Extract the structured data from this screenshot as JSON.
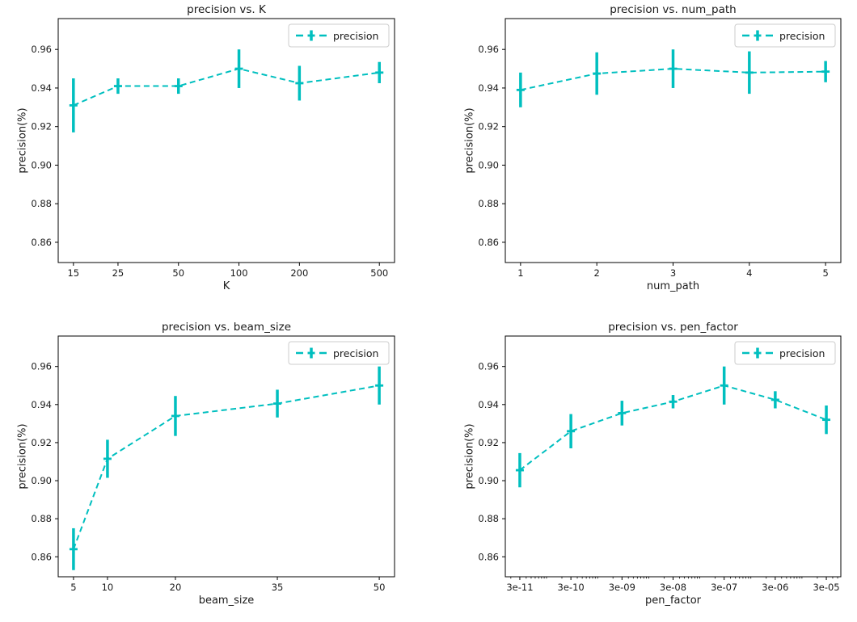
{
  "figure": {
    "background": "#ffffff",
    "accent_color": "#00bfbf",
    "text_color": "#1a1a1a",
    "spine_color": "#000000",
    "legend_border_color": "#cccccc"
  },
  "chart_data": [
    {
      "type": "line",
      "subtype": "errorbar",
      "title": "precision vs. K",
      "xlabel": "K",
      "ylabel": "precision(%)",
      "legend": {
        "label": "precision",
        "position": "upper right"
      },
      "line_style": "dashed",
      "color": "#00bfbf",
      "xscale": "log",
      "grid": false,
      "minor_xticks": false,
      "x": [
        15,
        25,
        50,
        100,
        200,
        500
      ],
      "xtick_labels": [
        "15",
        "25",
        "50",
        "100",
        "200",
        "500"
      ],
      "y": [
        0.931,
        0.941,
        0.941,
        0.95,
        0.9425,
        0.948
      ],
      "yerr": [
        0.014,
        0.004,
        0.004,
        0.01,
        0.009,
        0.0055
      ],
      "yticks": [
        0.86,
        0.88,
        0.9,
        0.92,
        0.94,
        0.96
      ],
      "ytick_labels": [
        "0.86",
        "0.88",
        "0.90",
        "0.92",
        "0.94",
        "0.96"
      ],
      "xlim": [
        12.6,
        595
      ],
      "ylim": [
        0.8495,
        0.976
      ]
    },
    {
      "type": "line",
      "subtype": "errorbar",
      "title": "precision vs. num_path",
      "xlabel": "num_path",
      "ylabel": "precision(%)",
      "legend": {
        "label": "precision",
        "position": "upper right"
      },
      "line_style": "dashed",
      "color": "#00bfbf",
      "xscale": "linear",
      "grid": false,
      "minor_xticks": false,
      "x": [
        1,
        2,
        3,
        4,
        5
      ],
      "xtick_labels": [
        "1",
        "2",
        "3",
        "4",
        "5"
      ],
      "y": [
        0.939,
        0.9475,
        0.95,
        0.948,
        0.9485
      ],
      "yerr": [
        0.009,
        0.011,
        0.01,
        0.011,
        0.0055
      ],
      "yticks": [
        0.86,
        0.88,
        0.9,
        0.92,
        0.94,
        0.96
      ],
      "ytick_labels": [
        "0.86",
        "0.88",
        "0.90",
        "0.92",
        "0.94",
        "0.96"
      ],
      "xlim": [
        0.8,
        5.2
      ],
      "ylim": [
        0.8495,
        0.976
      ]
    },
    {
      "type": "line",
      "subtype": "errorbar",
      "title": "precision vs. beam_size",
      "xlabel": "beam_size",
      "ylabel": "precision(%)",
      "legend": {
        "label": "precision",
        "position": "upper right"
      },
      "line_style": "dashed",
      "color": "#00bfbf",
      "xscale": "linear",
      "grid": false,
      "minor_xticks": false,
      "x": [
        5,
        10,
        20,
        35,
        50
      ],
      "xtick_labels": [
        "5",
        "10",
        "20",
        "35",
        "50"
      ],
      "y": [
        0.864,
        0.9115,
        0.934,
        0.9405,
        0.95
      ],
      "yerr": [
        0.011,
        0.01,
        0.0105,
        0.0073,
        0.01
      ],
      "yticks": [
        0.86,
        0.88,
        0.9,
        0.92,
        0.94,
        0.96
      ],
      "ytick_labels": [
        "0.86",
        "0.88",
        "0.90",
        "0.92",
        "0.94",
        "0.96"
      ],
      "xlim": [
        2.75,
        52.25
      ],
      "ylim": [
        0.8495,
        0.976
      ]
    },
    {
      "type": "line",
      "subtype": "errorbar",
      "title": "precision vs. pen_factor",
      "xlabel": "pen_factor",
      "ylabel": "precision(%)",
      "legend": {
        "label": "precision",
        "position": "upper right"
      },
      "line_style": "dashed",
      "color": "#00bfbf",
      "xscale": "log",
      "grid": false,
      "minor_xticks": true,
      "x": [
        3e-11,
        3e-10,
        3e-09,
        3e-08,
        3e-07,
        3e-06,
        3e-05
      ],
      "xtick_labels": [
        "3e-11",
        "3e-10",
        "3e-09",
        "3e-08",
        "3e-07",
        "3e-06",
        "3e-05"
      ],
      "y": [
        0.9055,
        0.926,
        0.9355,
        0.9415,
        0.95,
        0.9425,
        0.932
      ],
      "yerr": [
        0.009,
        0.009,
        0.0065,
        0.0035,
        0.01,
        0.0045,
        0.0075
      ],
      "yticks": [
        0.86,
        0.88,
        0.9,
        0.92,
        0.94,
        0.96
      ],
      "ytick_labels": [
        "0.86",
        "0.88",
        "0.90",
        "0.92",
        "0.94",
        "0.96"
      ],
      "xlim": [
        1.56e-11,
        5.77e-05
      ],
      "ylim": [
        0.8495,
        0.976
      ]
    }
  ]
}
